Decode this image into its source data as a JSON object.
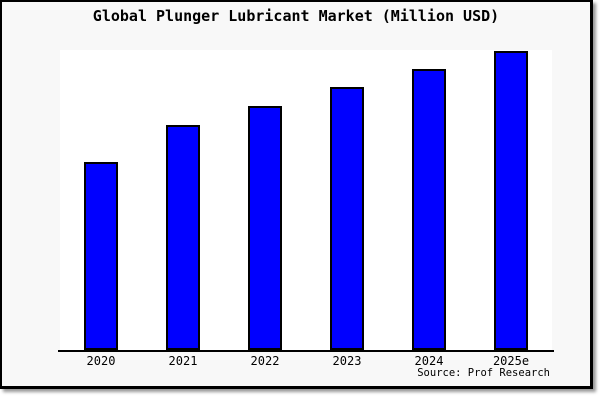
{
  "title": "Global Plunger Lubricant Market (Million USD)",
  "source": "Source: Prof Research",
  "colors": {
    "bar_fill": "#0000ff",
    "bar_stroke": "#000000",
    "figure_bg": "#f8f8f8",
    "plot_bg": "#ffffff",
    "axis": "#000000",
    "frame_border": "#000000"
  },
  "chart_data": {
    "type": "bar",
    "title": "Global Plunger Lubricant Market (Million USD)",
    "categories": [
      "2020",
      "2021",
      "2022",
      "2023",
      "2024",
      "2025e"
    ],
    "values": [
      62.9,
      75.3,
      81.6,
      88.0,
      94.0,
      100
    ],
    "values_note": "No y-axis scale or data labels are shown in the figure; values are relative bar heights as a percentage of the tallest (2025e) bar.",
    "xlabel": "",
    "ylabel": "",
    "ylim_relative": [
      0,
      100.3
    ],
    "grid": false,
    "legend": false,
    "yaxis_visible": false,
    "source": "Source: Prof Research"
  }
}
